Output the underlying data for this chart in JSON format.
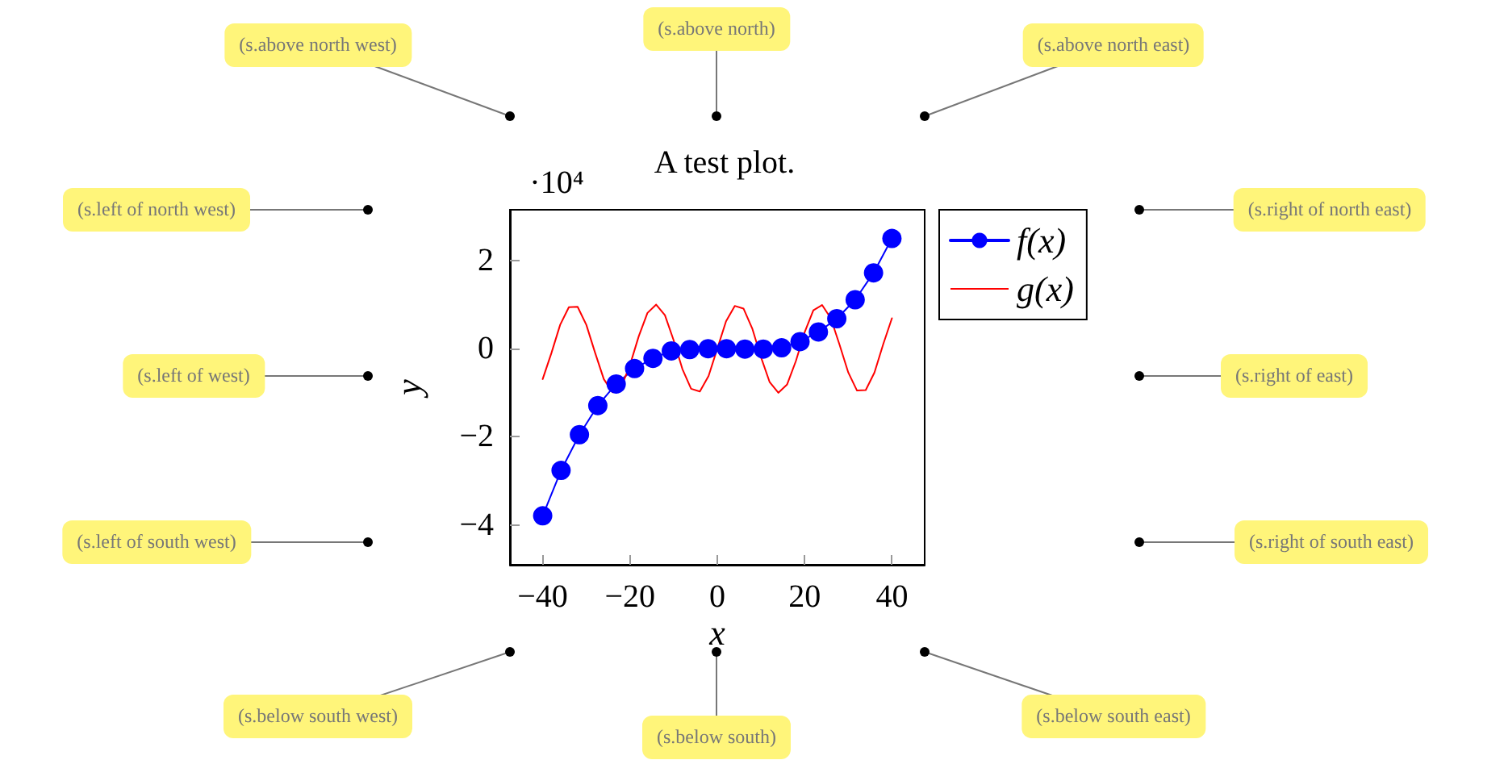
{
  "chart_data": {
    "type": "line",
    "title": "A test plot.",
    "xlabel": "x",
    "ylabel": "y",
    "annotations": [
      "·10⁴",
      "(s.above north west)",
      "(s.above north)",
      "(s.above north east)",
      "(s.left of north west)",
      "(s.right of north east)",
      "(s.left of west)",
      "(s.right of east)",
      "(s.left of south west)",
      "(s.right of south east)",
      "(s.below south west)",
      "(s.below south)",
      "(s.below south east)"
    ],
    "series": [
      {
        "name": "f(x)",
        "color": "#0000ff",
        "marker": "circle",
        "x": [
          -40,
          -35.79,
          -31.58,
          -27.37,
          -23.16,
          -18.95,
          -14.74,
          -10.53,
          -6.32,
          -2.11,
          2.11,
          6.32,
          10.53,
          14.74,
          18.95,
          23.16,
          27.37,
          31.58,
          35.79,
          40
        ],
        "values": [
          -3.79,
          -2.76,
          -1.95,
          -1.29,
          -0.8,
          -0.45,
          -0.22,
          -0.05,
          -0.02,
          0,
          0,
          -0.01,
          -0.01,
          0.02,
          0.16,
          0.38,
          0.68,
          1.11,
          1.72,
          2.5
        ]
      },
      {
        "name": "g(x)",
        "color": "#ff0000",
        "marker": "none",
        "x": [
          -40,
          -38,
          -36,
          -34,
          -32,
          -30,
          -28,
          -26,
          -24,
          -22,
          -20,
          -18,
          -16,
          -14,
          -12,
          -10,
          -8,
          -6,
          -4,
          -2,
          0,
          2,
          4,
          6,
          8,
          10,
          12,
          14,
          16,
          18,
          20,
          22,
          24,
          26,
          28,
          30,
          32,
          34,
          36,
          38,
          40
        ],
        "values": [
          -0.69,
          -0.1,
          0.54,
          0.94,
          0.95,
          0.54,
          -0.09,
          -0.69,
          -0.99,
          -0.87,
          -0.37,
          0.28,
          0.81,
          1,
          0.76,
          0.19,
          -0.46,
          -0.91,
          -0.97,
          -0.62,
          0,
          0.62,
          0.97,
          0.91,
          0.46,
          -0.19,
          -0.76,
          -1,
          -0.81,
          -0.28,
          0.37,
          0.87,
          0.99,
          0.69,
          0.09,
          -0.54,
          -0.95,
          -0.94,
          -0.54,
          0.1,
          0.69
        ]
      }
    ],
    "xlim": [
      -47.5,
      47.5
    ],
    "xticks": [
      -40,
      -20,
      0,
      20,
      40
    ],
    "ylim": [
      -4.9,
      3.15
    ],
    "yticks": [
      -4,
      -2,
      0,
      2
    ],
    "grid": false,
    "legend": "top right",
    "line_style": "solid"
  }
}
